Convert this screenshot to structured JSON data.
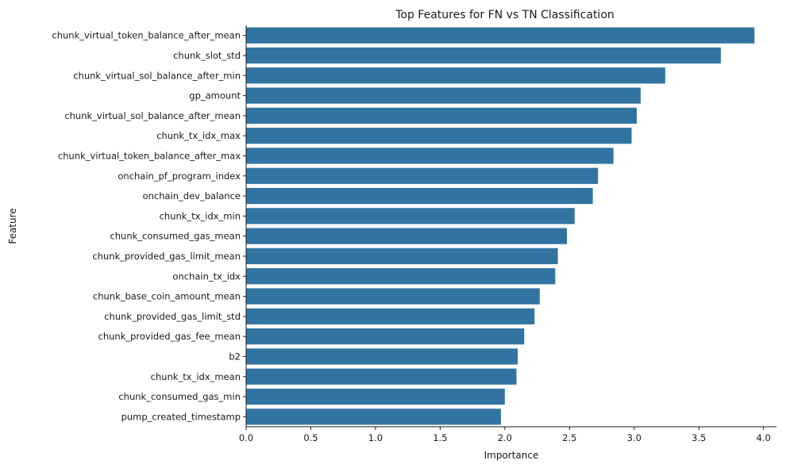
{
  "chart_data": {
    "type": "bar",
    "orientation": "horizontal",
    "title": "Top Features for FN vs TN Classification",
    "xlabel": "Importance",
    "ylabel": "Feature",
    "xlim": [
      0,
      4.1
    ],
    "xticks": [
      0.0,
      0.5,
      1.0,
      1.5,
      2.0,
      2.5,
      3.0,
      3.5,
      4.0
    ],
    "xtick_labels": [
      "0.0",
      "0.5",
      "1.0",
      "1.5",
      "2.0",
      "2.5",
      "3.0",
      "3.5",
      "4.0"
    ],
    "grid": false,
    "bar_color": "#3274a1",
    "categories": [
      "chunk_virtual_token_balance_after_mean",
      "chunk_slot_std",
      "chunk_virtual_sol_balance_after_min",
      "gp_amount",
      "chunk_virtual_sol_balance_after_mean",
      "chunk_tx_idx_max",
      "chunk_virtual_token_balance_after_max",
      "onchain_pf_program_index",
      "onchain_dev_balance",
      "chunk_tx_idx_min",
      "chunk_consumed_gas_mean",
      "chunk_provided_gas_limit_mean",
      "onchain_tx_idx",
      "chunk_base_coin_amount_mean",
      "chunk_provided_gas_limit_std",
      "chunk_provided_gas_fee_mean",
      "b2",
      "chunk_tx_idx_mean",
      "chunk_consumed_gas_min",
      "pump_created_timestamp"
    ],
    "values": [
      3.93,
      3.67,
      3.24,
      3.05,
      3.02,
      2.98,
      2.84,
      2.72,
      2.68,
      2.54,
      2.48,
      2.41,
      2.39,
      2.27,
      2.23,
      2.15,
      2.1,
      2.09,
      2.0,
      1.97
    ]
  }
}
